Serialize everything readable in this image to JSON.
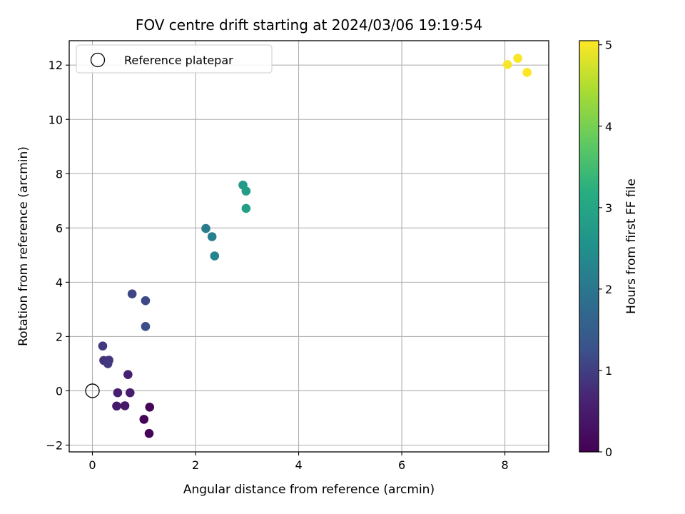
{
  "chart_data": {
    "type": "scatter",
    "title": "FOV centre drift starting at 2024/03/06 19:19:54",
    "xlabel": "Angular distance from reference (arcmin)",
    "ylabel": "Rotation from reference (arcmin)",
    "xlim": [
      -0.45,
      8.85
    ],
    "ylim": [
      -2.25,
      12.9
    ],
    "xticks": [
      0,
      2,
      4,
      6,
      8
    ],
    "yticks": [
      -2,
      0,
      2,
      4,
      6,
      8,
      10,
      12
    ],
    "grid": true,
    "colormap": "viridis",
    "colorbar": {
      "label": "Hours from first FF file",
      "range": [
        0,
        5.05
      ],
      "ticks": [
        0,
        1,
        2,
        3,
        4,
        5
      ]
    },
    "legend": {
      "placement": "upper-left",
      "entries": [
        {
          "label": "Reference platepar",
          "marker": "open-circle"
        }
      ]
    },
    "reference_point": {
      "x": 0,
      "y": 0
    },
    "points": [
      {
        "x": 1.0,
        "y": -1.05,
        "hours": 0.05
      },
      {
        "x": 1.1,
        "y": -1.57,
        "hours": 0.08
      },
      {
        "x": 1.11,
        "y": -0.6,
        "hours": 0.1
      },
      {
        "x": 0.47,
        "y": -0.56,
        "hours": 0.45
      },
      {
        "x": 0.63,
        "y": -0.55,
        "hours": 0.48
      },
      {
        "x": 0.49,
        "y": -0.07,
        "hours": 0.55
      },
      {
        "x": 0.73,
        "y": -0.07,
        "hours": 0.52
      },
      {
        "x": 0.69,
        "y": 0.6,
        "hours": 0.58
      },
      {
        "x": 0.22,
        "y": 1.12,
        "hours": 0.85
      },
      {
        "x": 0.32,
        "y": 1.13,
        "hours": 0.9
      },
      {
        "x": 0.3,
        "y": 1.0,
        "hours": 0.92
      },
      {
        "x": 0.2,
        "y": 1.65,
        "hours": 0.95
      },
      {
        "x": 0.77,
        "y": 3.57,
        "hours": 1.1
      },
      {
        "x": 1.03,
        "y": 3.32,
        "hours": 1.15
      },
      {
        "x": 1.03,
        "y": 2.37,
        "hours": 1.2
      },
      {
        "x": 2.2,
        "y": 5.98,
        "hours": 2.1
      },
      {
        "x": 2.32,
        "y": 5.68,
        "hours": 2.2
      },
      {
        "x": 2.37,
        "y": 4.97,
        "hours": 2.3
      },
      {
        "x": 2.92,
        "y": 7.58,
        "hours": 2.75
      },
      {
        "x": 2.98,
        "y": 7.36,
        "hours": 2.8
      },
      {
        "x": 2.98,
        "y": 6.72,
        "hours": 2.85
      },
      {
        "x": 8.05,
        "y": 12.02,
        "hours": 5.0
      },
      {
        "x": 8.25,
        "y": 12.25,
        "hours": 5.02
      },
      {
        "x": 8.43,
        "y": 11.73,
        "hours": 5.05
      }
    ]
  }
}
